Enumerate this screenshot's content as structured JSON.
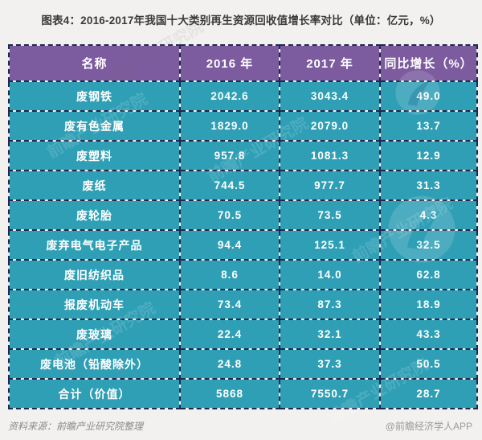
{
  "page": {
    "title": "图表4：2016-2017年我国十大类别再生资源回收值增长率对比（单位：亿元，%）",
    "source_note": "资料来源：前瞻产业研究院整理",
    "brand_note": "@前瞻经济学人APP"
  },
  "watermark": {
    "text": "前瞻产业研究院",
    "logo": "qianzhan-swoosh-logo"
  },
  "colors": {
    "header_bg": "#7c5b9f",
    "cell_bg": "#2f9fb5",
    "border": "#1c2a52",
    "cell_text": "#ffffff",
    "title_text": "#3a3a3a",
    "footer_text": "#8b8b8b",
    "page_bg": "#f2f1ef"
  },
  "table": {
    "headers": [
      "名称",
      "2016 年",
      "2017 年",
      "同比增长（%）"
    ],
    "rows": [
      {
        "name": "废钢铁",
        "y2016": "2042.6",
        "y2017": "3043.4",
        "growth": "49.0"
      },
      {
        "name": "废有色金属",
        "y2016": "1829.0",
        "y2017": "2079.0",
        "growth": "13.7"
      },
      {
        "name": "废塑料",
        "y2016": "957.8",
        "y2017": "1081.3",
        "growth": "12.9"
      },
      {
        "name": "废纸",
        "y2016": "744.5",
        "y2017": "977.7",
        "growth": "31.3"
      },
      {
        "name": "废轮胎",
        "y2016": "70.5",
        "y2017": "73.5",
        "growth": "4.3"
      },
      {
        "name": "废弃电气电子产品",
        "y2016": "94.4",
        "y2017": "125.1",
        "growth": "32.5"
      },
      {
        "name": "废旧纺织品",
        "y2016": "8.6",
        "y2017": "14.0",
        "growth": "62.8"
      },
      {
        "name": "报废机动车",
        "y2016": "73.4",
        "y2017": "87.3",
        "growth": "18.9"
      },
      {
        "name": "废玻璃",
        "y2016": "22.4",
        "y2017": "32.1",
        "growth": "43.3"
      },
      {
        "name": "废电池（铅酸除外）",
        "y2016": "24.8",
        "y2017": "37.3",
        "growth": "50.5"
      },
      {
        "name": "合计（价值）",
        "y2016": "5868",
        "y2017": "7550.7",
        "growth": "28.7"
      }
    ]
  },
  "chart_data": {
    "type": "table",
    "title": "图表4：2016-2017年我国十大类别再生资源回收值增长率对比（单位：亿元，%）",
    "columns": [
      "名称",
      "2016 年",
      "2017 年",
      "同比增长（%）"
    ],
    "units": {
      "values": "亿元",
      "growth": "%"
    },
    "rows": [
      [
        "废钢铁",
        2042.6,
        3043.4,
        49.0
      ],
      [
        "废有色金属",
        1829.0,
        2079.0,
        13.7
      ],
      [
        "废塑料",
        957.8,
        1081.3,
        12.9
      ],
      [
        "废纸",
        744.5,
        977.7,
        31.3
      ],
      [
        "废轮胎",
        70.5,
        73.5,
        4.3
      ],
      [
        "废弃电气电子产品",
        94.4,
        125.1,
        32.5
      ],
      [
        "废旧纺织品",
        8.6,
        14.0,
        62.8
      ],
      [
        "报废机动车",
        73.4,
        87.3,
        18.9
      ],
      [
        "废玻璃",
        22.4,
        32.1,
        43.3
      ],
      [
        "废电池（铅酸除外）",
        24.8,
        37.3,
        50.5
      ],
      [
        "合计（价值）",
        5868,
        7550.7,
        28.7
      ]
    ],
    "source": "资料来源：前瞻产业研究院整理",
    "branding": "@前瞻经济学人APP"
  }
}
